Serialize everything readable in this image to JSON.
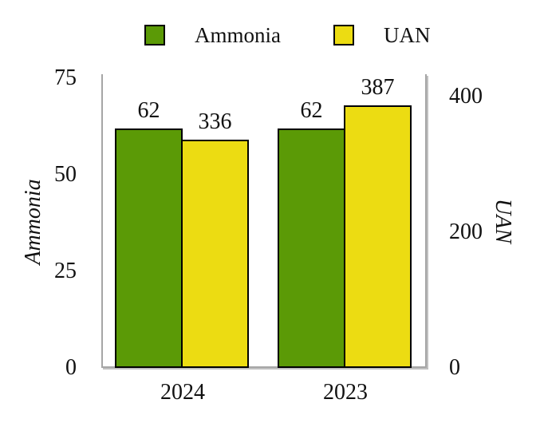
{
  "chart_data": {
    "type": "bar",
    "categories": [
      "2024",
      "2023"
    ],
    "series": [
      {
        "name": "Ammonia",
        "axis": "left",
        "color": "#5b9a06",
        "values": [
          62,
          62
        ]
      },
      {
        "name": "UAN",
        "axis": "right",
        "color": "#ecdc12",
        "values": [
          336,
          387
        ]
      }
    ],
    "bar_value_labels": [
      "62",
      "336",
      "62",
      "387"
    ],
    "ylabel_left": "Ammonia",
    "ylabel_right": "UAN",
    "left_ticks": [
      "0",
      "25",
      "50",
      "75"
    ],
    "right_ticks": [
      "0",
      "200",
      "400"
    ],
    "ylim_left": [
      0,
      76
    ],
    "ylim_right": [
      0,
      433
    ],
    "legend_position": "top",
    "grid": false,
    "title": "",
    "colors": {
      "bar_border": "#000000",
      "axis_line": "#a6a6a6",
      "text": "#111111",
      "background": "#ffffff"
    }
  }
}
